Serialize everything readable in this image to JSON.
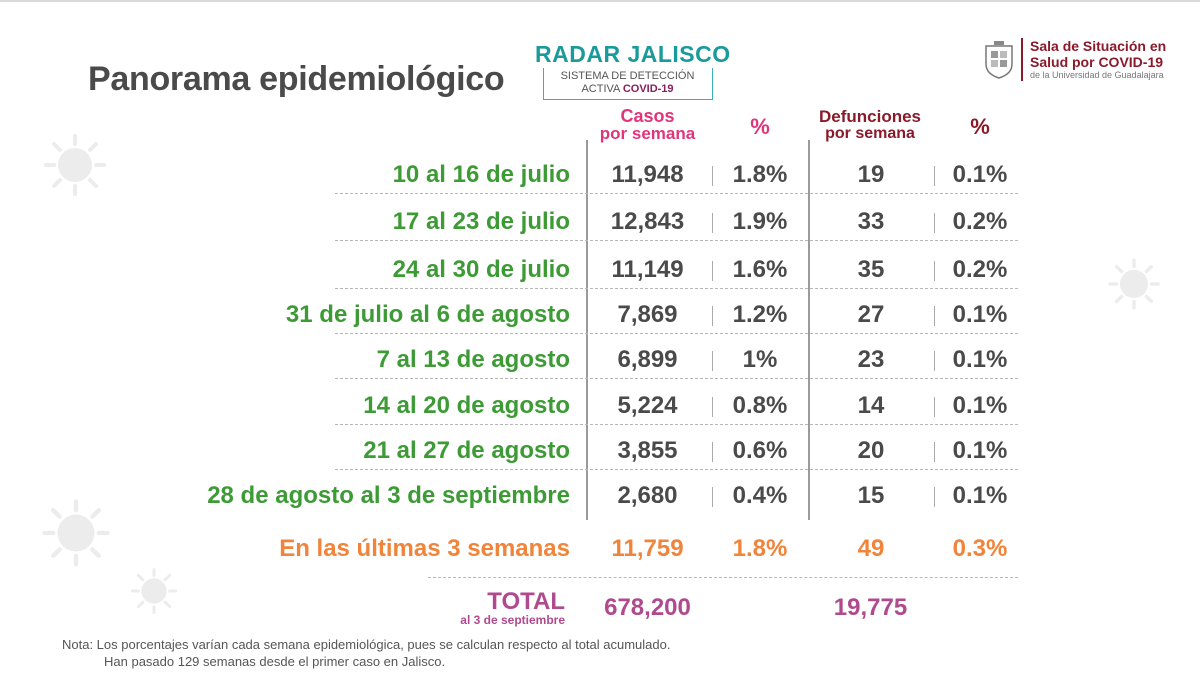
{
  "title": "Panorama epidemiológico",
  "radar": {
    "name": "RADAR JALISCO",
    "line1": "SISTEMA DE DETECCIÓN",
    "line2": "ACTIVA ",
    "line2_bold": "COVID-19"
  },
  "sala": {
    "line1": "Sala de Situación en",
    "line2": "Salud por COVID-19",
    "line3": "de la Universidad de Guadalajara"
  },
  "headers": {
    "casos_a": "Casos",
    "casos_b": "por semana",
    "pct1": "%",
    "def_a": "Defunciones",
    "def_b": "por semana",
    "pct2": "%"
  },
  "rows": [
    {
      "label": "10 al 16 de julio",
      "casos": "11,948",
      "pct_casos": "1.8%",
      "defunciones": "19",
      "pct_def": "0.1%"
    },
    {
      "label": "17 al 23 de julio",
      "casos": "12,843",
      "pct_casos": "1.9%",
      "defunciones": "33",
      "pct_def": "0.2%"
    },
    {
      "label": "24 al 30 de julio",
      "casos": "11,149",
      "pct_casos": "1.6%",
      "defunciones": "35",
      "pct_def": "0.2%"
    },
    {
      "label": "31 de julio al 6 de agosto",
      "casos": "7,869",
      "pct_casos": "1.2%",
      "defunciones": "27",
      "pct_def": "0.1%"
    },
    {
      "label": "7 al 13 de agosto",
      "casos": "6,899",
      "pct_casos": "1%",
      "defunciones": "23",
      "pct_def": "0.1%"
    },
    {
      "label": "14 al 20 de agosto",
      "casos": "5,224",
      "pct_casos": "0.8%",
      "defunciones": "14",
      "pct_def": "0.1%"
    },
    {
      "label": "21 al 27 de agosto",
      "casos": "3,855",
      "pct_casos": "0.6%",
      "defunciones": "20",
      "pct_def": "0.1%"
    },
    {
      "label": "28 de agosto al 3 de septiembre",
      "casos": "2,680",
      "pct_casos": "0.4%",
      "defunciones": "15",
      "pct_def": "0.1%"
    }
  ],
  "ultimas": {
    "label": "En las últimas 3 semanas",
    "casos": "11,759",
    "pct_casos": "1.8%",
    "defunciones": "49",
    "pct_def": "0.3%"
  },
  "total": {
    "label": "TOTAL",
    "sub": "al 3 de septiembre",
    "casos": "678,200",
    "defunciones": "19,775"
  },
  "nota": {
    "line1": "Nota: Los porcentajes varían cada semana epidemiológica, pues se calculan respecto al total acumulado.",
    "line2": "Han pasado 129 semanas desde el primer caso en Jalisco."
  },
  "colors": {
    "green": "#3d9b35",
    "orange": "#f0843a",
    "pink": "#e0357a",
    "maroon": "#8a1a2a",
    "purple": "#b04a8e",
    "teal": "#1a9a9a"
  }
}
